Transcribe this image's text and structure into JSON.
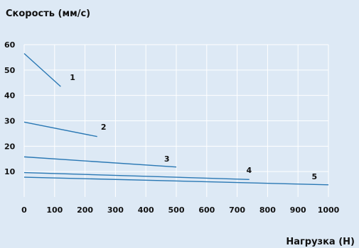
{
  "chart_data": {
    "type": "line",
    "title": "",
    "ylabel": "Скорость (мм/с)",
    "xlabel": "Нагрузка (Н)",
    "xlim": [
      0,
      1000
    ],
    "ylim": [
      0,
      60
    ],
    "xticks": [
      0,
      100,
      200,
      300,
      400,
      500,
      600,
      700,
      800,
      900,
      1000
    ],
    "yticks": [
      10,
      20,
      30,
      40,
      50,
      60
    ],
    "grid": true,
    "colors": {
      "background": "#dde9f5",
      "grid": "#ffffff",
      "line": "#2a78b4",
      "text": "#111111"
    },
    "series": [
      {
        "name": "1",
        "points": [
          [
            0,
            56.5
          ],
          [
            120,
            43.5
          ]
        ],
        "label_at": [
          150,
          46
        ]
      },
      {
        "name": "2",
        "points": [
          [
            0,
            29.5
          ],
          [
            240,
            23.8
          ]
        ],
        "label_at": [
          252,
          26.5
        ]
      },
      {
        "name": "3",
        "points": [
          [
            0,
            15.8
          ],
          [
            500,
            11.8
          ]
        ],
        "label_at": [
          460,
          14
        ]
      },
      {
        "name": "4",
        "points": [
          [
            0,
            9.6
          ],
          [
            740,
            6.9
          ]
        ],
        "label_at": [
          730,
          9.5
        ]
      },
      {
        "name": "5",
        "points": [
          [
            0,
            7.8
          ],
          [
            1000,
            4.8
          ]
        ],
        "label_at": [
          945,
          7
        ]
      }
    ]
  }
}
